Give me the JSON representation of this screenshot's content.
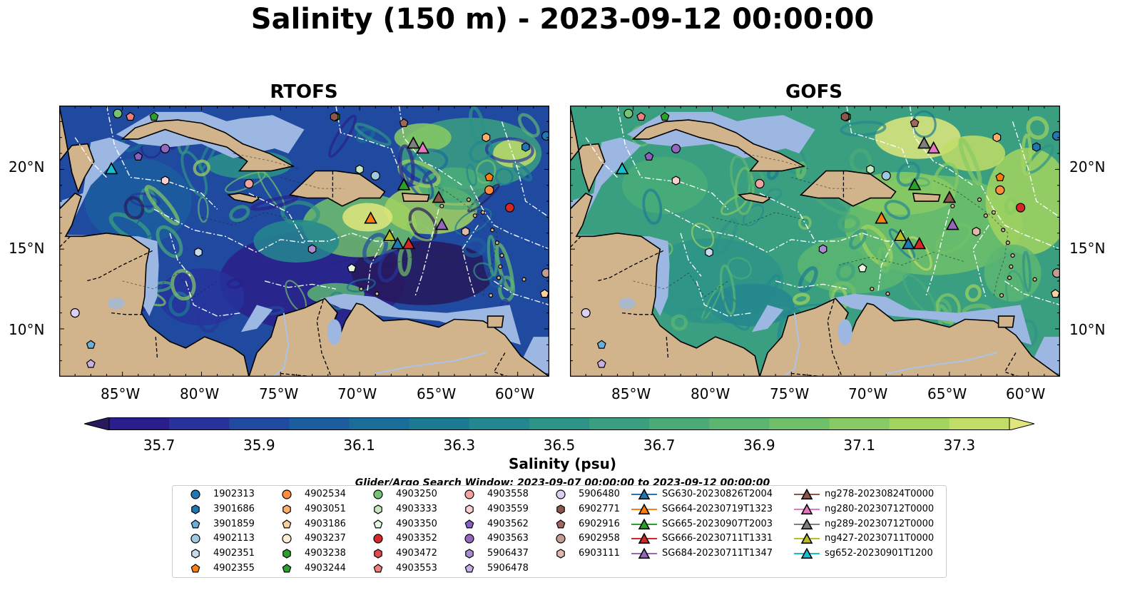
{
  "title": "Salinity (150 m) - 2023-09-12 00:00:00",
  "panels": [
    {
      "title": "RTOFS"
    },
    {
      "title": "GOFS"
    }
  ],
  "axes": {
    "lon_labels": [
      "85°W",
      "80°W",
      "75°W",
      "70°W",
      "65°W",
      "60°W"
    ],
    "lat_labels": [
      "20°N",
      "15°N",
      "10°N"
    ],
    "lon_range": [
      -89,
      -58
    ],
    "lat_range": [
      7,
      24
    ]
  },
  "colorbar": {
    "label": "Salinity (psu)",
    "ticks": [
      "35.7",
      "35.9",
      "36.1",
      "36.3",
      "36.5",
      "36.7",
      "36.9",
      "37.1",
      "37.3"
    ],
    "range": [
      35.6,
      37.4
    ],
    "extend": "both",
    "colors": [
      "#27195b",
      "#2a1f8a",
      "#27339b",
      "#1f4aa0",
      "#1b5d9e",
      "#1a6d99",
      "#1d7a95",
      "#24878f",
      "#2d9388",
      "#3a9f80",
      "#4aab78",
      "#5cb672",
      "#70c06a",
      "#88ca64",
      "#a3d45f",
      "#c1dd66",
      "#e0e67c"
    ]
  },
  "search_window": "Glider/Argo Search Window: 2023-09-07 00:00:00 to 2023-09-12 00:00:00",
  "colors": {
    "land": "#d2b48c",
    "shelf": "#9cb8e2",
    "deep": "#241a5c"
  },
  "legend": {
    "columns": [
      [
        {
          "label": "1902313",
          "marker": "circle",
          "color": "#1f77b4"
        },
        {
          "label": "3901686",
          "marker": "hexagon",
          "color": "#1f77b4"
        },
        {
          "label": "3901859",
          "marker": "pentagon",
          "color": "#6baed6"
        },
        {
          "label": "4902113",
          "marker": "circle",
          "color": "#9ecae1"
        },
        {
          "label": "4902351",
          "marker": "hexagon",
          "color": "#c6dbef"
        },
        {
          "label": "4902355",
          "marker": "pentagon",
          "color": "#ff7f0e"
        }
      ],
      [
        {
          "label": "4902534",
          "marker": "circle",
          "color": "#fd8d3c"
        },
        {
          "label": "4903051",
          "marker": "hexagon",
          "color": "#fdae6b"
        },
        {
          "label": "4903186",
          "marker": "pentagon",
          "color": "#fdd0a2"
        },
        {
          "label": "4903237",
          "marker": "circle",
          "color": "#feedd6"
        },
        {
          "label": "4903238",
          "marker": "hexagon",
          "color": "#2ca02c"
        },
        {
          "label": "4903244",
          "marker": "pentagon",
          "color": "#2ca02c"
        }
      ],
      [
        {
          "label": "4903250",
          "marker": "circle",
          "color": "#74c476"
        },
        {
          "label": "4903333",
          "marker": "hexagon",
          "color": "#c7e9c0"
        },
        {
          "label": "4903350",
          "marker": "pentagon",
          "color": "#e5f5e0"
        },
        {
          "label": "4903352",
          "marker": "circle",
          "color": "#d62728"
        },
        {
          "label": "4903472",
          "marker": "hexagon",
          "color": "#e34a4a"
        },
        {
          "label": "4903553",
          "marker": "pentagon",
          "color": "#f08080"
        }
      ],
      [
        {
          "label": "4903558",
          "marker": "circle",
          "color": "#f4a3a3"
        },
        {
          "label": "4903559",
          "marker": "hexagon",
          "color": "#fbd0d0"
        },
        {
          "label": "4903562",
          "marker": "pentagon",
          "color": "#8a5fbf"
        },
        {
          "label": "4903563",
          "marker": "circle",
          "color": "#9467bd"
        },
        {
          "label": "5906437",
          "marker": "hexagon",
          "color": "#a98bd4"
        },
        {
          "label": "5906478",
          "marker": "pentagon",
          "color": "#c5b0e6"
        }
      ],
      [
        {
          "label": "5906480",
          "marker": "circle",
          "color": "#dcd0f2"
        },
        {
          "label": "6902771",
          "marker": "hexagon",
          "color": "#8c564b"
        },
        {
          "label": "6902916",
          "marker": "pentagon",
          "color": "#a0685c"
        },
        {
          "label": "6902958",
          "marker": "circle",
          "color": "#c49c94"
        },
        {
          "label": "6903111",
          "marker": "hexagon",
          "color": "#e0b8ac"
        }
      ],
      [
        {
          "label": "SG630-20230826T2004",
          "marker": "triangle",
          "color": "#1f77b4"
        },
        {
          "label": "SG664-20230719T1323",
          "marker": "triangle",
          "color": "#ff7f0e"
        },
        {
          "label": "SG665-20230907T2003",
          "marker": "triangle",
          "color": "#2ca02c"
        },
        {
          "label": "SG666-20230711T1331",
          "marker": "triangle",
          "color": "#d62728"
        },
        {
          "label": "SG684-20230711T1347",
          "marker": "triangle",
          "color": "#9467bd"
        }
      ],
      [
        {
          "label": "ng278-20230824T0000",
          "marker": "triangle",
          "color": "#8c564b"
        },
        {
          "label": "ng280-20230712T0000",
          "marker": "triangle",
          "color": "#e377c2"
        },
        {
          "label": "ng289-20230712T0000",
          "marker": "triangle",
          "color": "#7f7f7f"
        },
        {
          "label": "ng427-20230711T0000",
          "marker": "triangle",
          "color": "#bcbd22"
        },
        {
          "label": "sg652-20230901T1200",
          "marker": "triangle",
          "color": "#17becf"
        }
      ]
    ]
  },
  "observations": [
    {
      "id": "1902313",
      "lon": -58.2,
      "lat": 22.1
    },
    {
      "id": "3901686",
      "lon": -59.5,
      "lat": 21.4
    },
    {
      "id": "4902113",
      "lon": -69.0,
      "lat": 19.6
    },
    {
      "id": "4902351",
      "lon": -80.2,
      "lat": 14.8
    },
    {
      "id": "4902355",
      "lon": -61.8,
      "lat": 19.5
    },
    {
      "id": "4902534",
      "lon": -61.8,
      "lat": 18.7
    },
    {
      "id": "4903186",
      "lon": -58.3,
      "lat": 12.2
    },
    {
      "id": "4903238",
      "lon": -71.5,
      "lat": 23.3
    },
    {
      "id": "4903244",
      "lon": -83.0,
      "lat": 23.3
    },
    {
      "id": "4903250",
      "lon": -85.3,
      "lat": 23.5
    },
    {
      "id": "4903333",
      "lon": -70.0,
      "lat": 20.0
    },
    {
      "id": "4903350",
      "lon": -70.5,
      "lat": 13.8
    },
    {
      "id": "4903352",
      "lon": -60.5,
      "lat": 17.6
    },
    {
      "id": "4903553",
      "lon": -84.5,
      "lat": 23.3
    },
    {
      "id": "4903558",
      "lon": -77.0,
      "lat": 19.1
    },
    {
      "id": "4903559",
      "lon": -82.3,
      "lat": 19.3
    },
    {
      "id": "4903562",
      "lon": -84.0,
      "lat": 20.8
    },
    {
      "id": "4903563",
      "lon": -82.3,
      "lat": 21.3
    },
    {
      "id": "5906437",
      "lon": -73.0,
      "lat": 15.0
    },
    {
      "id": "5906478",
      "lon": -87.0,
      "lat": 7.8
    },
    {
      "id": "5906480",
      "lon": -88.0,
      "lat": 11.0
    },
    {
      "id": "6902771",
      "lon": -71.6,
      "lat": 23.3
    },
    {
      "id": "6902916",
      "lon": -67.2,
      "lat": 22.9
    },
    {
      "id": "6902958",
      "lon": -58.2,
      "lat": 13.5
    },
    {
      "id": "6903111",
      "lon": -63.3,
      "lat": 16.1
    },
    {
      "id": "3901859",
      "lon": -87.0,
      "lat": 9.0
    },
    {
      "id": "4903051",
      "lon": -62.0,
      "lat": 22.0
    },
    {
      "id": "SG630-20230826T2004",
      "lon": -67.6,
      "lat": 15.3
    },
    {
      "id": "SG664-20230719T1323",
      "lon": -69.3,
      "lat": 16.9
    },
    {
      "id": "SG665-20230907T2003",
      "lon": -67.2,
      "lat": 19.0
    },
    {
      "id": "SG666-20230711T1331",
      "lon": -66.9,
      "lat": 15.3
    },
    {
      "id": "SG684-20230711T1347",
      "lon": -64.8,
      "lat": 16.5
    },
    {
      "id": "ng278-20230824T0000",
      "lon": -65.0,
      "lat": 18.2
    },
    {
      "id": "ng280-20230712T0000",
      "lon": -66.0,
      "lat": 21.3
    },
    {
      "id": "ng289-20230712T0000",
      "lon": -66.6,
      "lat": 21.6
    },
    {
      "id": "ng427-20230711T0000",
      "lon": -68.1,
      "lat": 15.8
    },
    {
      "id": "sg652-20230901T1200",
      "lon": -85.7,
      "lat": 20.0
    }
  ]
}
